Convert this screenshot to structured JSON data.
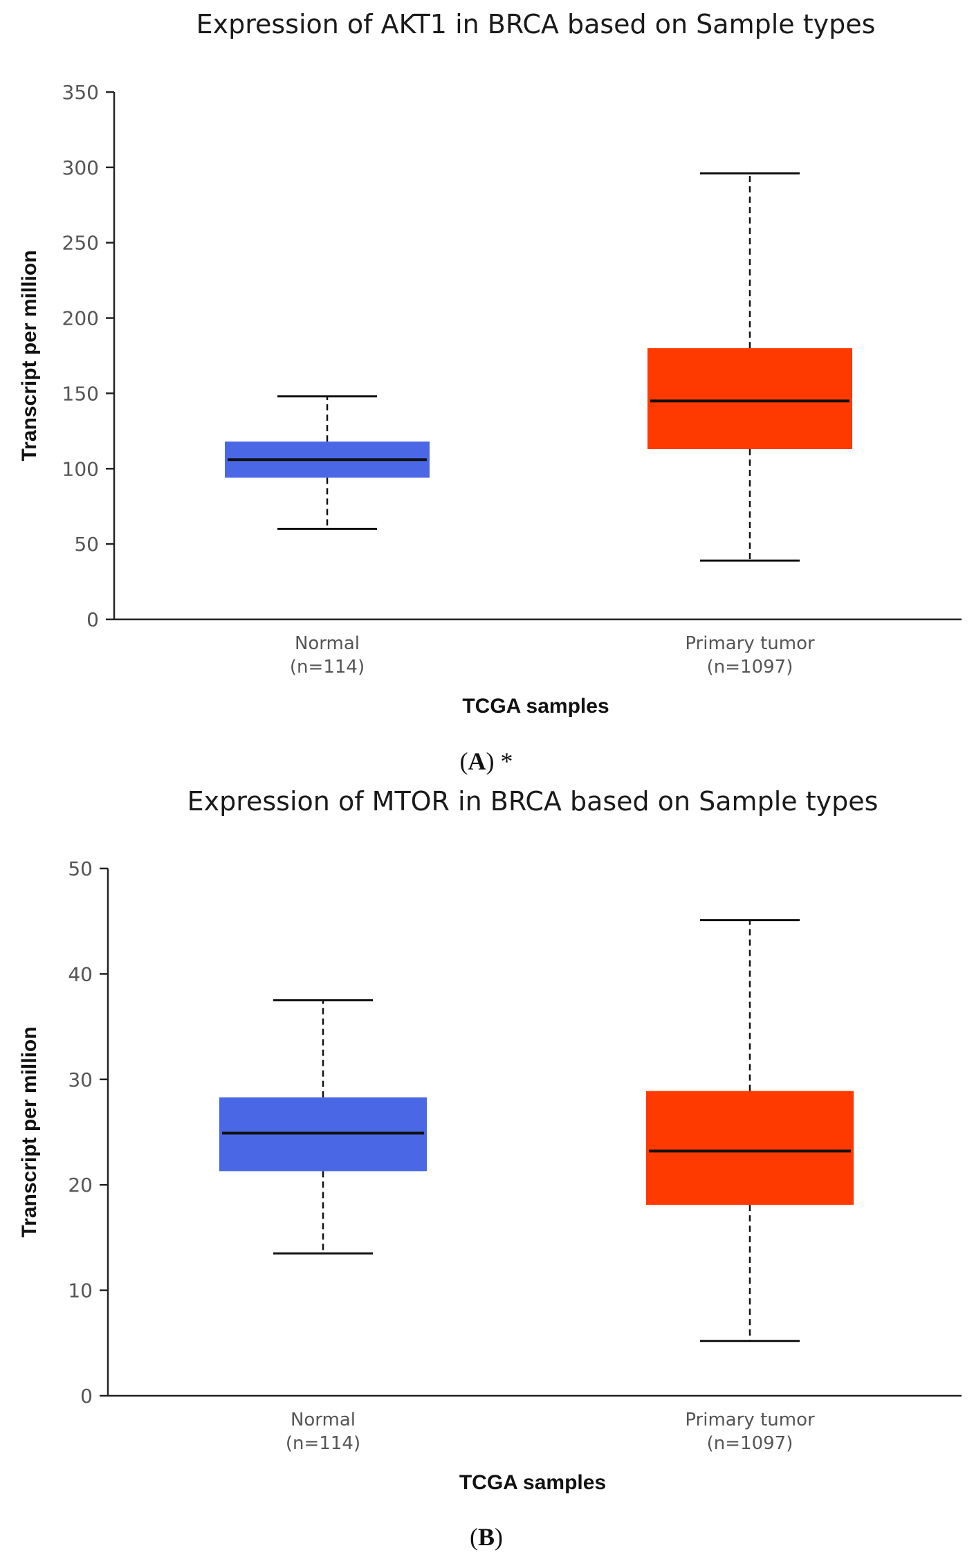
{
  "chart_data": [
    {
      "type": "box",
      "title": "Expression of AKT1 in BRCA based on Sample types",
      "xlabel": "TCGA samples",
      "ylabel": "Transcript per million",
      "ylim": [
        0,
        350
      ],
      "yticks": [
        0,
        50,
        100,
        150,
        200,
        250,
        300,
        350
      ],
      "caption": {
        "open": "(",
        "letter": "A",
        "close": ")",
        "suffix": " *"
      },
      "categories": [
        {
          "name": "Normal",
          "n": "(n=114)",
          "color": "#4a68e6",
          "min": 60,
          "q1": 94,
          "median": 106,
          "q3": 118,
          "max": 148
        },
        {
          "name": "Primary tumor",
          "n": "(n=1097)",
          "color": "#ff3a00",
          "min": 39,
          "q1": 113,
          "median": 145,
          "q3": 180,
          "max": 296
        }
      ]
    },
    {
      "type": "box",
      "title": "Expression of MTOR in BRCA based on Sample types",
      "xlabel": "TCGA samples",
      "ylabel": "Transcript per million",
      "ylim": [
        0,
        50
      ],
      "yticks": [
        0,
        10,
        20,
        30,
        40,
        50
      ],
      "caption": {
        "open": "(",
        "letter": "B",
        "close": ")",
        "suffix": ""
      },
      "categories": [
        {
          "name": "Normal",
          "n": "(n=114)",
          "color": "#4a68e6",
          "min": 13.5,
          "q1": 21.3,
          "median": 24.9,
          "q3": 28.3,
          "max": 37.5
        },
        {
          "name": "Primary tumor",
          "n": "(n=1097)",
          "color": "#ff3a00",
          "min": 5.2,
          "q1": 18.1,
          "median": 23.2,
          "q3": 28.9,
          "max": 45.1
        }
      ]
    }
  ]
}
